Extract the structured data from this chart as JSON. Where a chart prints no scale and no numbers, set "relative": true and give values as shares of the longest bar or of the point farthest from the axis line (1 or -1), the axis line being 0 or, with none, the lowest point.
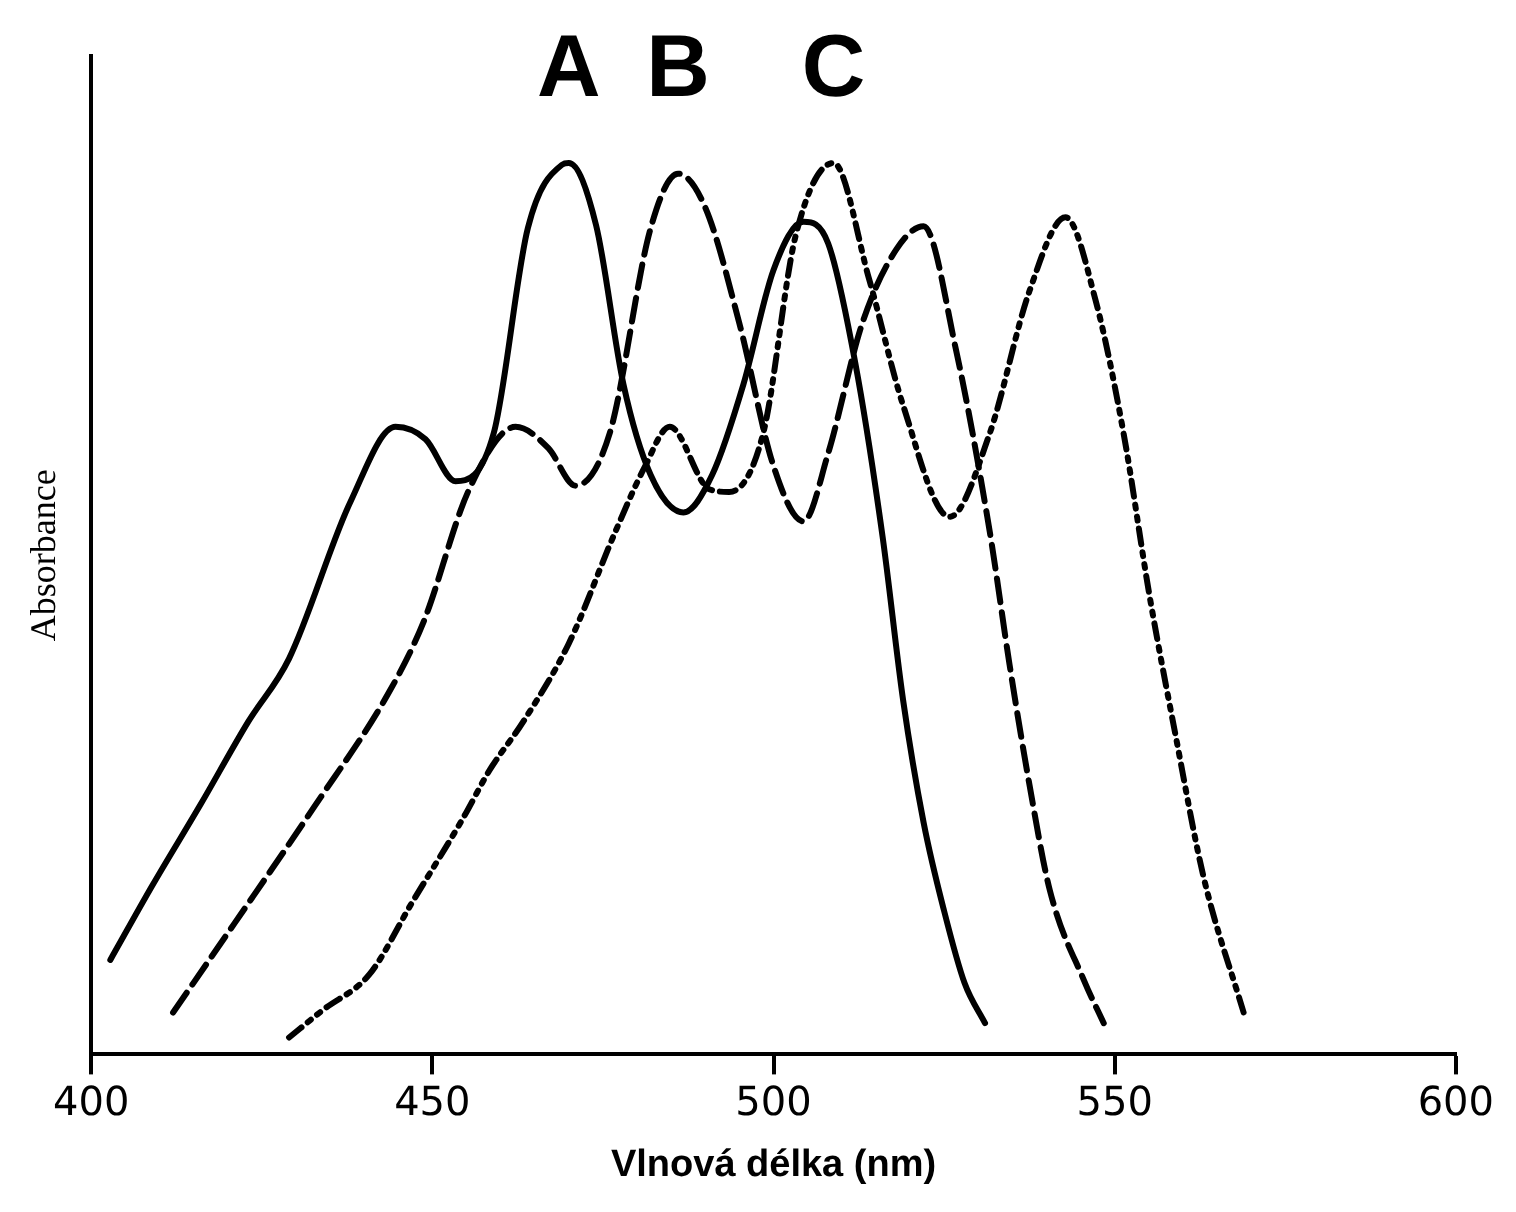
{
  "chart_data": {
    "type": "line",
    "relative": true,
    "xlabel": "Vlnová délka (nm)",
    "ylabel": "Absorbance",
    "xlim": [
      400,
      600
    ],
    "xticks": [
      400,
      450,
      500,
      550,
      600
    ],
    "grid": false,
    "legend": false,
    "marker": "none",
    "series": [
      {
        "name": "A",
        "color": "#000000",
        "line_style": "solid",
        "x": [
          402.8,
          409,
          416,
          423,
          429,
          438,
          444.6,
          449,
          453.4,
          459,
          464,
          469,
          470,
          474,
          478,
          482,
          486.8,
          491,
          495.6,
          500,
          504.4,
          508,
          512,
          516,
          519,
          522,
          525,
          528,
          531
        ],
        "values": [
          0.106,
          0.19,
          0.28,
          0.373,
          0.444,
          0.62,
          0.704,
          0.69,
          0.643,
          0.697,
          0.927,
          0.998,
          1.0,
          0.93,
          0.752,
          0.65,
          0.608,
          0.65,
          0.752,
          0.88,
          0.934,
          0.91,
          0.775,
          0.58,
          0.397,
          0.26,
          0.161,
          0.08,
          0.035
        ]
      },
      {
        "name": "B",
        "color": "#000000",
        "line_style": "dashed",
        "x": [
          412,
          421,
          432.8,
          443.7,
          448.7,
          455.4,
          462.2,
          467,
          471,
          476,
          482,
          486,
          490,
          495,
          500,
          504.4,
          508,
          513,
          518,
          522,
          526.7,
          531.7,
          534.6,
          537.5,
          540.5,
          545.5,
          548.4
        ],
        "values": [
          0.047,
          0.147,
          0.279,
          0.407,
          0.485,
          0.634,
          0.704,
          0.68,
          0.638,
          0.697,
          0.927,
          0.988,
          0.95,
          0.82,
          0.66,
          0.598,
          0.674,
          0.82,
          0.903,
          0.929,
          0.792,
          0.586,
          0.437,
          0.303,
          0.184,
          0.083,
          0.035
        ]
      },
      {
        "name": "C",
        "color": "#000000",
        "line_style": "dotted",
        "x": [
          429,
          434,
          440.8,
          447,
          454.5,
          458.4,
          463.3,
          470,
          476.8,
          481,
          484.8,
          490.6,
          493.5,
          498.5,
          503.2,
          508.8,
          514,
          519,
          525.8,
          531.7,
          537.5,
          542.8,
          547.2,
          551.3,
          555.1,
          558.9,
          563,
          568.9
        ],
        "values": [
          0.019,
          0.05,
          0.09,
          0.17,
          0.265,
          0.319,
          0.373,
          0.461,
          0.586,
          0.657,
          0.704,
          0.634,
          0.631,
          0.697,
          0.917,
          1.0,
          0.87,
          0.728,
          0.603,
          0.697,
          0.856,
          0.939,
          0.846,
          0.697,
          0.515,
          0.359,
          0.2,
          0.047
        ]
      }
    ]
  }
}
